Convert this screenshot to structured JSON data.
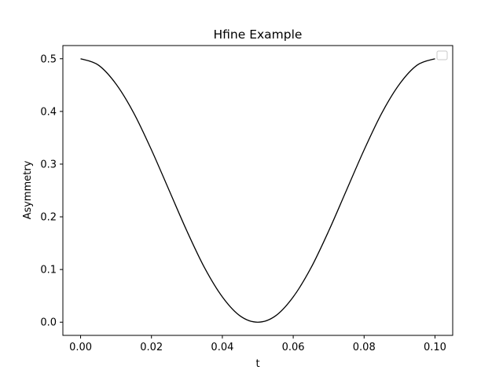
{
  "chart_data": {
    "type": "line",
    "title": "Hfine Example",
    "xlabel": "t",
    "ylabel": "Asymmetry",
    "xlim": [
      -0.005,
      0.105
    ],
    "ylim": [
      -0.025,
      0.525
    ],
    "xticks": [
      0.0,
      0.02,
      0.04,
      0.06,
      0.08,
      0.1
    ],
    "xtick_labels": [
      "0.00",
      "0.02",
      "0.04",
      "0.06",
      "0.08",
      "0.10"
    ],
    "yticks": [
      0.0,
      0.1,
      0.2,
      0.3,
      0.4,
      0.5
    ],
    "ytick_labels": [
      "0.0",
      "0.1",
      "0.2",
      "0.3",
      "0.4",
      "0.5"
    ],
    "grid": false,
    "legend": {
      "location": "upper right",
      "entries": []
    },
    "series": [
      {
        "color": "#000000",
        "x": [
          0.0,
          0.005,
          0.01,
          0.015,
          0.02,
          0.025,
          0.03,
          0.035,
          0.04,
          0.045,
          0.05,
          0.055,
          0.06,
          0.065,
          0.07,
          0.075,
          0.08,
          0.085,
          0.09,
          0.095,
          0.1
        ],
        "y": [
          0.5,
          0.488,
          0.452,
          0.397,
          0.327,
          0.25,
          0.173,
          0.103,
          0.048,
          0.012,
          0.0,
          0.012,
          0.048,
          0.103,
          0.173,
          0.25,
          0.327,
          0.397,
          0.452,
          0.488,
          0.5
        ]
      }
    ]
  }
}
